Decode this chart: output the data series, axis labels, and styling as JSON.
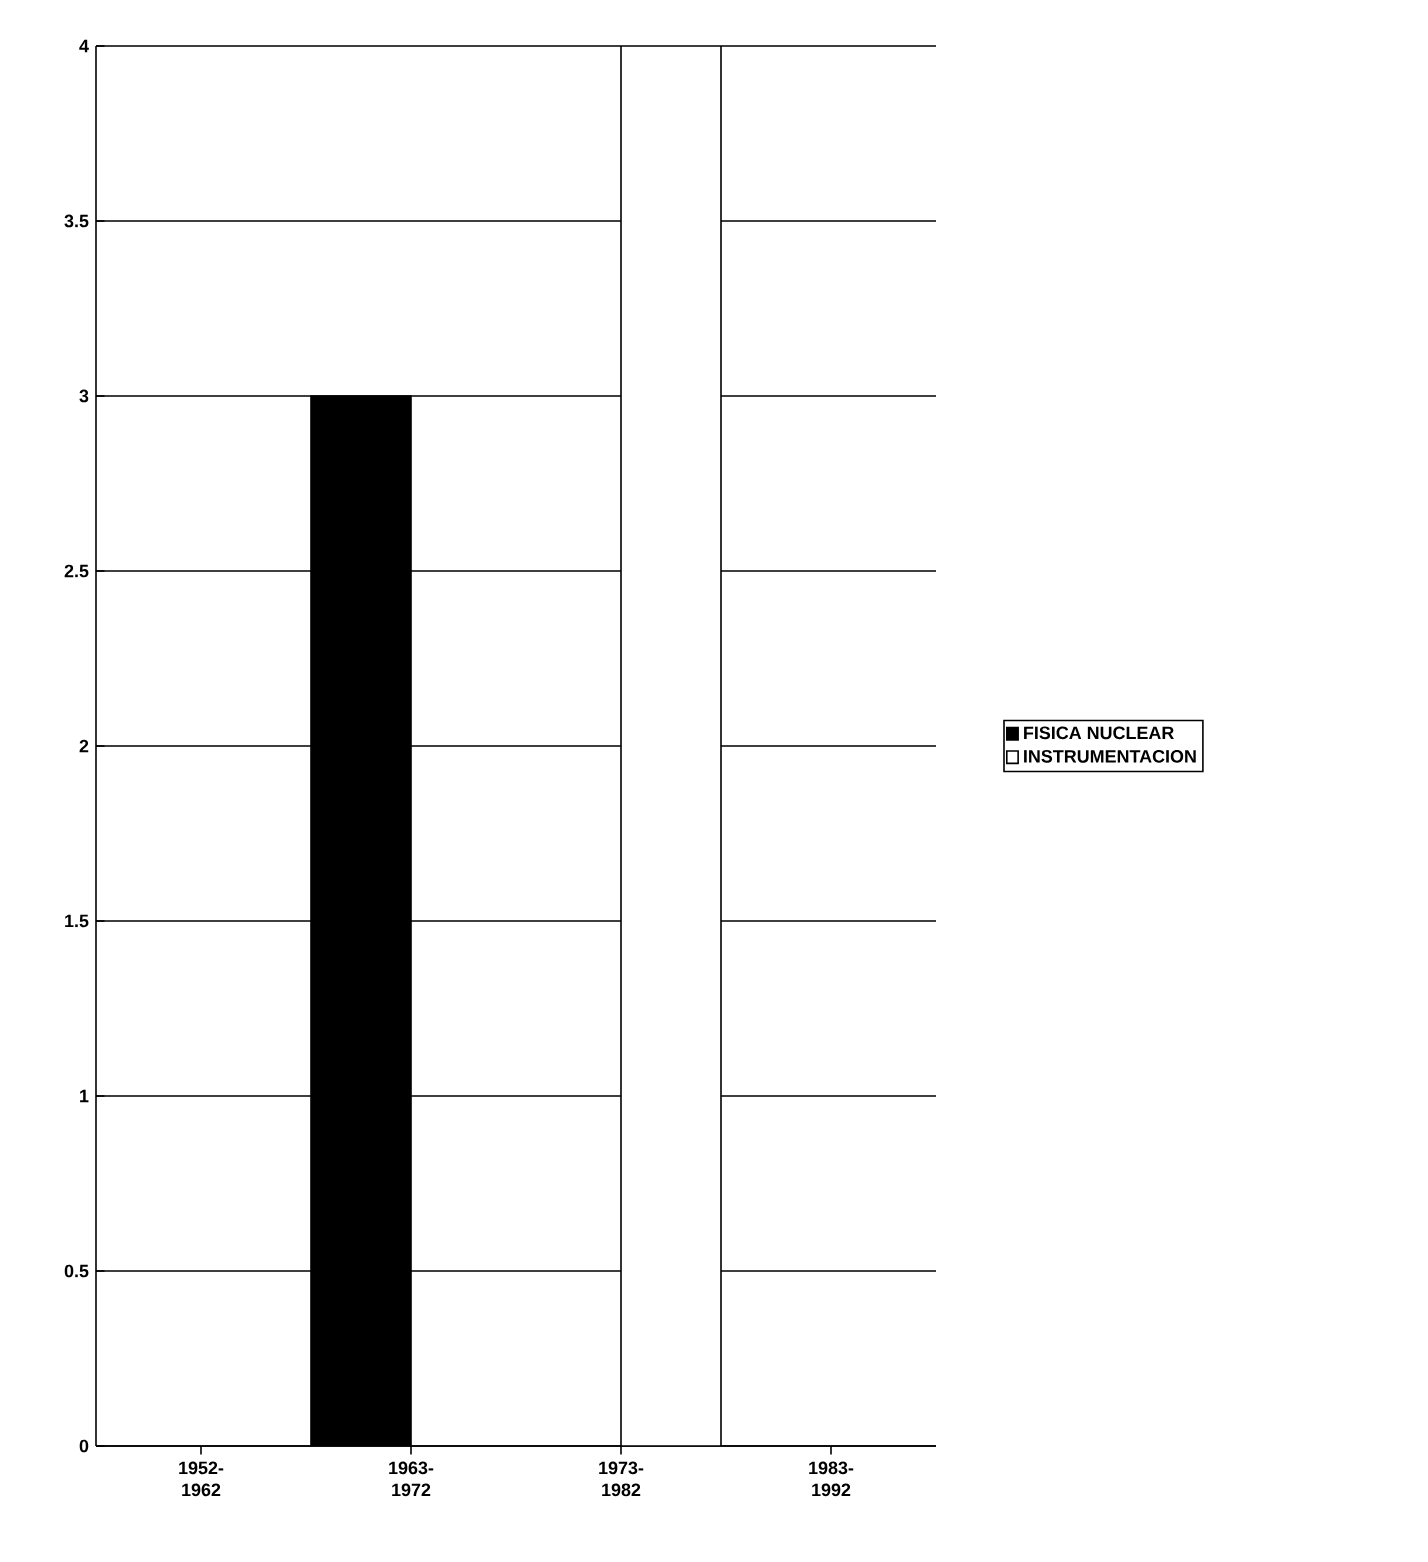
{
  "chart_data": {
    "type": "bar",
    "categories": [
      "1952-1962",
      "1963-1972",
      "1973-1982",
      "1983-1992"
    ],
    "series": [
      {
        "name": "FISICA NUCLEAR",
        "color": "#000000",
        "values": [
          null,
          3,
          null,
          null
        ]
      },
      {
        "name": "INSTRUMENTACION",
        "color": "#ffffff",
        "values": [
          null,
          null,
          4,
          null
        ]
      }
    ],
    "ylim": [
      0,
      4
    ],
    "yticks": [
      0,
      0.5,
      1,
      1.5,
      2,
      2.5,
      3,
      3.5,
      4
    ],
    "grid": "y",
    "legend": "right"
  }
}
